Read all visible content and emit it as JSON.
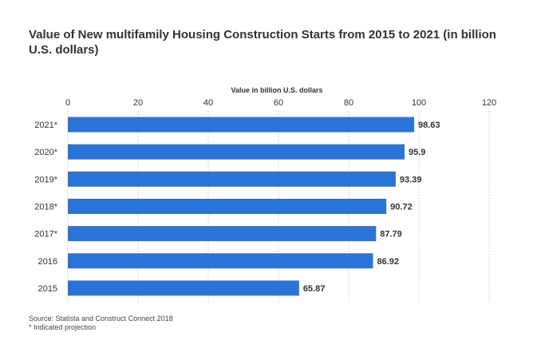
{
  "chart_data": {
    "type": "bar",
    "orientation": "horizontal",
    "title": "Value of New multifamily Housing Construction Starts from 2015 to 2021 (in billion U.S. dollars)",
    "xlabel": "Value in billion U.S. dollars",
    "ylabel": "",
    "xlim": [
      0,
      120
    ],
    "ticks": [
      "0",
      "20",
      "40",
      "60",
      "80",
      "100",
      "120"
    ],
    "categories": [
      "2021*",
      "2020*",
      "2019*",
      "2018*",
      "2017*",
      "2016",
      "2015"
    ],
    "values": [
      98.63,
      95.9,
      93.39,
      90.72,
      87.79,
      86.92,
      65.87
    ],
    "value_labels": [
      "98.63",
      "95.9",
      "93.39",
      "90.72",
      "87.79",
      "86.92",
      "65.87"
    ],
    "bar_color": "#2a74d9",
    "grid": true,
    "axis_position": "top"
  },
  "footer": {
    "source": "Source: Statista and Construct Connect 2018",
    "note": "* Indicated projection"
  }
}
